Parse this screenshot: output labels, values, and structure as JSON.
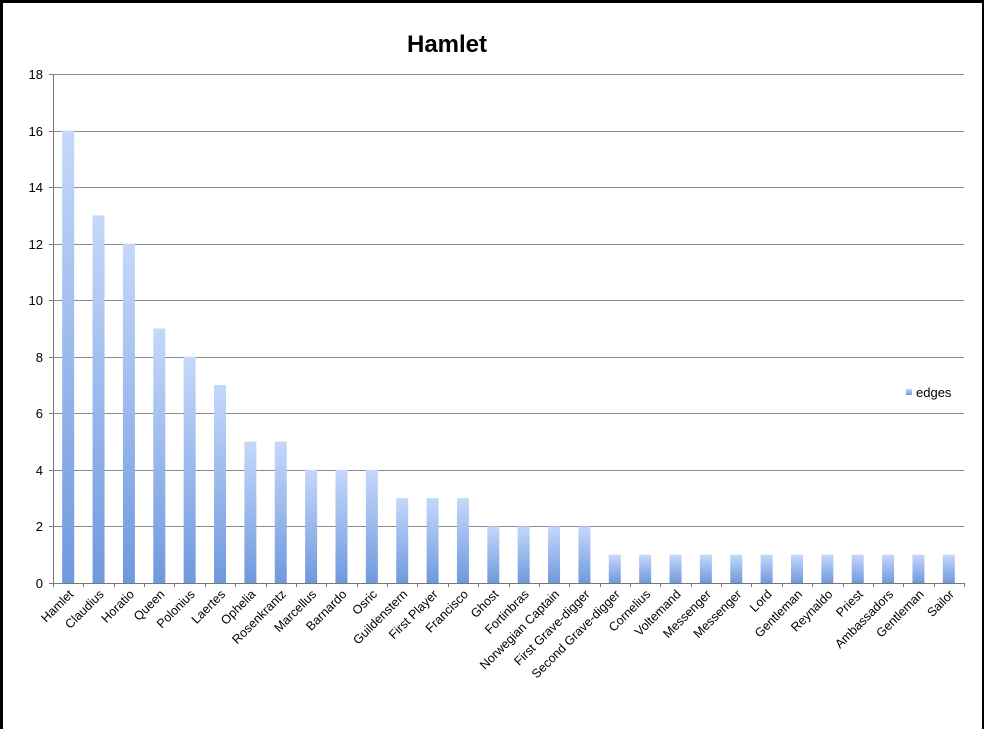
{
  "chart_data": {
    "type": "bar",
    "title": "Hamlet",
    "xlabel": "",
    "ylabel": "",
    "ylim": [
      0,
      18
    ],
    "yticks": [
      0,
      2,
      4,
      6,
      8,
      10,
      12,
      14,
      16,
      18
    ],
    "grid": true,
    "legend_position": "right",
    "categories": [
      "Hamlet",
      "Claudius",
      "Horatio",
      "Queen",
      "Polonius",
      "Laertes",
      "Ophelia",
      "Rosenkrantz",
      "Marcellus",
      "Barnardo",
      "Osric",
      "Guildenstern",
      "First Player",
      "Francisco",
      "Ghost",
      "Fortinbras",
      "Norwegian Captain",
      "First Grave-digger",
      "Second Grave-digger",
      "Cornelius",
      "Voltemand",
      "Messenger",
      "Messenger",
      "Lord",
      "Gentleman",
      "Reynaldo",
      "Priest",
      "Ambassadors",
      "Gentleman",
      "Sailor"
    ],
    "series": [
      {
        "name": "edges",
        "values": [
          16,
          13,
          12,
          9,
          8,
          7,
          5,
          5,
          4,
          4,
          4,
          3,
          3,
          3,
          2,
          2,
          2,
          2,
          1,
          1,
          1,
          1,
          1,
          1,
          1,
          1,
          1,
          1,
          1,
          1
        ]
      }
    ],
    "colors": {
      "bar_top": "#c5d8fb",
      "bar_bottom": "#6f99dd",
      "grid": "#8c8c8c",
      "axis": "#777777"
    }
  }
}
